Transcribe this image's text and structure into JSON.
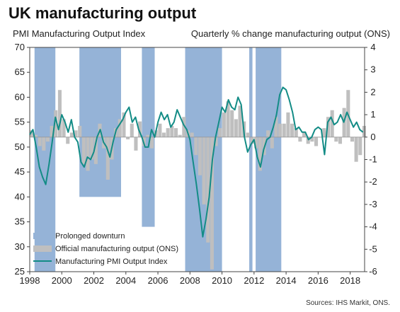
{
  "chart_data": {
    "type": "bar",
    "title": "UK manufacturing output",
    "ylabel_left": "PMI Manufacturing  Output Index",
    "ylabel_right": "Quarterly  % change manufacturing  output (ONS)",
    "source": "Sources: IHS Markit, ONS.",
    "x_range": [
      1998.0,
      2018.9
    ],
    "x_ticks": [
      "1998",
      "2000",
      "2002",
      "2004",
      "2006",
      "2008",
      "2010",
      "2012",
      "2014",
      "2016",
      "2018"
    ],
    "y_left_range": [
      25,
      70
    ],
    "y_left_ticks": [
      "25",
      "30",
      "35",
      "40",
      "45",
      "50",
      "55",
      "60",
      "65",
      "70"
    ],
    "y_right_range": [
      -6,
      4
    ],
    "y_right_ticks": [
      "-6",
      "-5",
      "-4",
      "-3",
      "-2",
      "-1",
      "0",
      "1",
      "2",
      "3",
      "4"
    ],
    "legend": {
      "downturn": "Prolonged downturn",
      "ons": "Official manufacturing output (ONS)",
      "pmi": "Manufacturing PMI Output Index"
    },
    "downturns": [
      {
        "start": 1998.3,
        "end": 1999.6,
        "top": 70,
        "bottom": 25
      },
      {
        "start": 2001.1,
        "end": 2003.7,
        "top": 70,
        "bottom": 40
      },
      {
        "start": 2005.0,
        "end": 2005.8,
        "top": 70,
        "bottom": 34
      },
      {
        "start": 2007.7,
        "end": 2010.0,
        "top": 70,
        "bottom": 25
      },
      {
        "start": 2011.7,
        "end": 2011.9,
        "top": 70,
        "bottom": 25
      },
      {
        "start": 2012.1,
        "end": 2013.7,
        "top": 70,
        "bottom": 25
      }
    ],
    "series": [
      {
        "name": "Official manufacturing output (ONS)",
        "x": [
          1998.0,
          1998.25,
          1998.5,
          1998.75,
          1999.0,
          1999.25,
          1999.5,
          1999.75,
          2000.0,
          2000.25,
          2000.5,
          2000.75,
          2001.0,
          2001.25,
          2001.5,
          2001.75,
          2002.0,
          2002.25,
          2002.5,
          2002.75,
          2003.0,
          2003.25,
          2003.5,
          2003.75,
          2004.0,
          2004.25,
          2004.5,
          2004.75,
          2005.0,
          2005.25,
          2005.5,
          2005.75,
          2006.0,
          2006.25,
          2006.5,
          2006.75,
          2007.0,
          2007.25,
          2007.5,
          2007.75,
          2008.0,
          2008.25,
          2008.5,
          2008.75,
          2009.0,
          2009.25,
          2009.5,
          2009.75,
          2010.0,
          2010.25,
          2010.5,
          2010.75,
          2011.0,
          2011.25,
          2011.5,
          2011.75,
          2012.0,
          2012.25,
          2012.5,
          2012.75,
          2013.0,
          2013.25,
          2013.5,
          2013.75,
          2014.0,
          2014.25,
          2014.5,
          2014.75,
          2015.0,
          2015.25,
          2015.5,
          2015.75,
          2016.0,
          2016.25,
          2016.5,
          2016.75,
          2017.0,
          2017.25,
          2017.5,
          2017.75,
          2018.0,
          2018.25,
          2018.5,
          2018.75
        ],
        "values": [
          0.3,
          0.1,
          -0.4,
          -0.6,
          -0.2,
          0.5,
          1.2,
          2.1,
          0.8,
          -0.3,
          0.2,
          0.3,
          0.5,
          -1.2,
          -1.5,
          -1.0,
          -1.2,
          0.6,
          -0.5,
          -1.9,
          -1.0,
          0.4,
          0.8,
          1.1,
          -0.1,
          0.6,
          -0.6,
          0.7,
          -0.4,
          0.1,
          -0.5,
          0.3,
          0.6,
          0.2,
          0.4,
          0.5,
          0.4,
          0.1,
          0.9,
          0.3,
          0.2,
          -0.8,
          -1.7,
          -3.0,
          -4.7,
          -5.9,
          -0.4,
          0.4,
          1.1,
          1.6,
          1.2,
          0.8,
          1.4,
          0.7,
          0.2,
          -0.3,
          -0.5,
          -1.5,
          -0.8,
          0.3,
          -0.5,
          0.9,
          0.6,
          0.6,
          1.1,
          0.6,
          0.4,
          -0.2,
          0.2,
          -0.3,
          -0.2,
          -0.4,
          0.0,
          0.4,
          0.9,
          1.2,
          -0.2,
          -0.3,
          1.3,
          2.1,
          -0.2,
          -1.1,
          -0.8,
          0.5
        ]
      },
      {
        "name": "Manufacturing PMI Output Index",
        "x": [
          1998.0,
          1998.2,
          1998.4,
          1998.6,
          1998.8,
          1999.0,
          1999.2,
          1999.4,
          1999.6,
          1999.8,
          2000.0,
          2000.2,
          2000.4,
          2000.6,
          2000.8,
          2001.0,
          2001.2,
          2001.4,
          2001.6,
          2001.8,
          2002.0,
          2002.2,
          2002.4,
          2002.6,
          2002.8,
          2003.0,
          2003.2,
          2003.4,
          2003.6,
          2003.8,
          2004.0,
          2004.2,
          2004.4,
          2004.6,
          2004.8,
          2005.0,
          2005.2,
          2005.4,
          2005.6,
          2005.8,
          2006.0,
          2006.2,
          2006.4,
          2006.6,
          2006.8,
          2007.0,
          2007.2,
          2007.4,
          2007.6,
          2007.8,
          2008.0,
          2008.2,
          2008.4,
          2008.6,
          2008.8,
          2009.0,
          2009.2,
          2009.4,
          2009.6,
          2009.8,
          2010.0,
          2010.2,
          2010.4,
          2010.6,
          2010.8,
          2011.0,
          2011.2,
          2011.4,
          2011.6,
          2011.8,
          2012.0,
          2012.2,
          2012.4,
          2012.6,
          2012.8,
          2013.0,
          2013.2,
          2013.4,
          2013.6,
          2013.8,
          2014.0,
          2014.2,
          2014.4,
          2014.6,
          2014.8,
          2015.0,
          2015.2,
          2015.4,
          2015.6,
          2015.8,
          2016.0,
          2016.2,
          2016.4,
          2016.6,
          2016.8,
          2017.0,
          2017.2,
          2017.4,
          2017.6,
          2017.8,
          2018.0,
          2018.2,
          2018.4,
          2018.6,
          2018.8
        ],
        "values": [
          52.5,
          53.5,
          50.0,
          46.0,
          44.0,
          42.5,
          46.5,
          51.0,
          56.0,
          53.5,
          56.5,
          55.0,
          53.0,
          55.5,
          52.0,
          51.0,
          47.0,
          46.0,
          48.0,
          47.5,
          49.0,
          52.0,
          53.5,
          51.0,
          50.0,
          48.0,
          51.0,
          53.5,
          54.5,
          55.5,
          57.0,
          58.0,
          55.0,
          56.0,
          53.5,
          52.0,
          50.0,
          50.0,
          53.5,
          52.0,
          55.0,
          57.0,
          55.5,
          56.5,
          54.0,
          55.0,
          57.5,
          56.0,
          54.5,
          53.5,
          51.5,
          47.0,
          42.5,
          37.5,
          32.0,
          35.5,
          40.0,
          47.5,
          52.0,
          55.0,
          58.0,
          57.0,
          59.5,
          58.0,
          57.5,
          60.0,
          58.5,
          52.0,
          49.0,
          50.5,
          51.5,
          48.0,
          46.0,
          49.5,
          51.5,
          52.0,
          54.0,
          56.5,
          60.5,
          62.0,
          61.5,
          59.5,
          57.0,
          53.5,
          54.0,
          53.0,
          53.0,
          51.5,
          52.0,
          53.5,
          54.0,
          53.5,
          48.5,
          55.0,
          56.0,
          54.5,
          55.0,
          56.5,
          55.0,
          57.0,
          55.5,
          54.0,
          55.0,
          53.5,
          53.0
        ]
      }
    ],
    "colors": {
      "downturn": "#95b3d7",
      "ons": "#bfbfbf",
      "pmi": "#138c86"
    }
  }
}
